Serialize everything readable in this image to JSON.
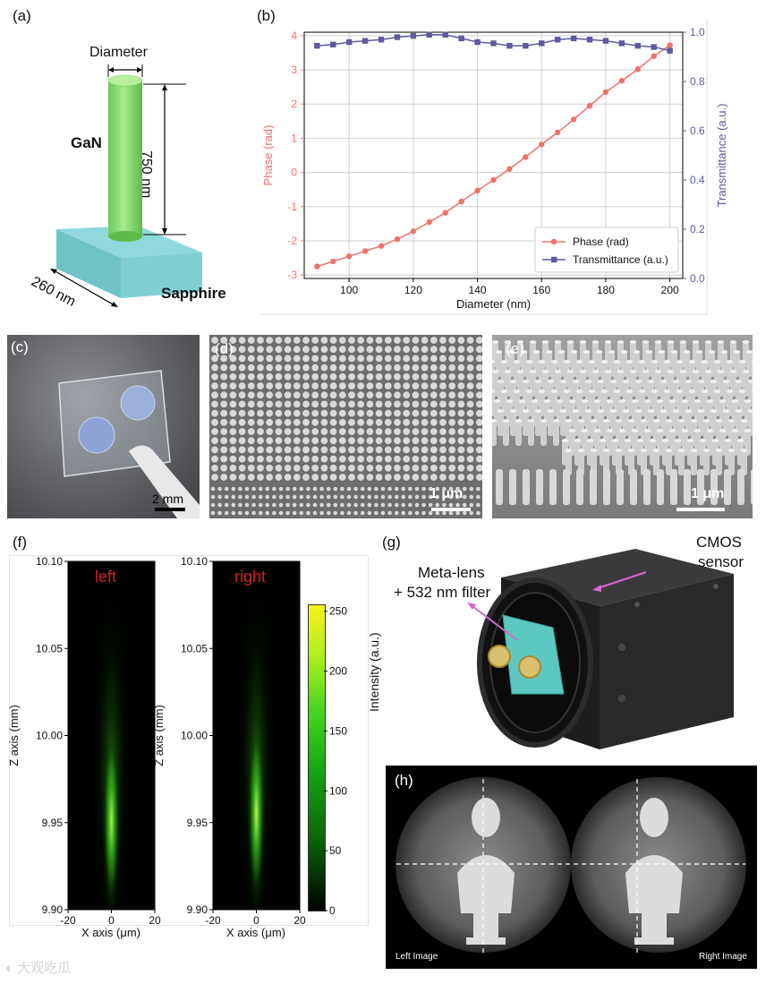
{
  "panels": {
    "a": "(a)",
    "b": "(b)",
    "c": "(c)",
    "d": "(d)",
    "e": "(e)",
    "f": "(f)",
    "g": "(g)",
    "h": "(h)"
  },
  "panel_a": {
    "diameter_label": "Diameter",
    "height_label": "750 nm",
    "material_top": "GaN",
    "substrate_label": "Sapphire",
    "period_label": "260 nm",
    "colors": {
      "pillar": "#7cd66a",
      "substrate": "#7fcfd3"
    }
  },
  "panel_c": {
    "scalebar": "2 mm"
  },
  "panel_d": {
    "scalebar": "1 μm"
  },
  "panel_e": {
    "scalebar": "1 μm"
  },
  "panel_f": {
    "left_title": "left",
    "right_title": "right",
    "ylabel": "Z axis (mm)",
    "xlabel": "X axis (μm)",
    "yticks": [
      "10.10",
      "10.05",
      "10.00",
      "9.95",
      "9.90"
    ],
    "xticks": [
      "-20",
      "0",
      "20"
    ],
    "colorbar_label": "Intensity (a.u.)",
    "colorbar_ticks": [
      "250",
      "200",
      "150",
      "100",
      "50",
      "0"
    ],
    "title_color": "#d42020"
  },
  "panel_g": {
    "lens_label_line1": "Meta-lens",
    "lens_label_line2": "+ 532 nm filter",
    "sensor_label_line1": "CMOS",
    "sensor_label_line2": "sensor",
    "arrow_color": "#d866d0"
  },
  "panel_h": {
    "left_caption": "Left Image",
    "right_caption": "Right Image"
  },
  "watermark": "大观吃瓜",
  "chart_data": {
    "type": "line",
    "xlabel": "Diameter (nm)",
    "ylabel": "Phase (rad)",
    "y2label": "Transmittance (a.u.)",
    "xlim": [
      86,
      204
    ],
    "ylim": [
      -3.1,
      4.1
    ],
    "y2lim": [
      0,
      1.0
    ],
    "xticks": [
      100,
      120,
      140,
      160,
      180,
      200
    ],
    "yticks": [
      -3,
      -2,
      -1,
      0,
      1,
      2,
      3,
      4
    ],
    "y2ticks": [
      0.0,
      0.2,
      0.4,
      0.6,
      0.8,
      1.0
    ],
    "grid": true,
    "legend_position": "lower-right",
    "x": [
      90,
      95,
      100,
      105,
      110,
      115,
      120,
      125,
      130,
      135,
      140,
      145,
      150,
      155,
      160,
      165,
      170,
      175,
      180,
      185,
      190,
      195,
      200
    ],
    "series": [
      {
        "name": "Phase (rad)",
        "axis": "left",
        "color": "#f0706a",
        "marker": "circle",
        "values": [
          -2.75,
          -2.6,
          -2.45,
          -2.3,
          -2.15,
          -1.95,
          -1.72,
          -1.45,
          -1.18,
          -0.85,
          -0.53,
          -0.22,
          0.1,
          0.45,
          0.82,
          1.17,
          1.55,
          1.95,
          2.35,
          2.68,
          3.02,
          3.4,
          3.72
        ]
      },
      {
        "name": "Transmittance (a.u.)",
        "axis": "right",
        "color": "#5d5a9e",
        "marker": "square",
        "values": [
          0.945,
          0.95,
          0.96,
          0.965,
          0.97,
          0.98,
          0.985,
          0.99,
          0.99,
          0.975,
          0.96,
          0.955,
          0.945,
          0.945,
          0.955,
          0.97,
          0.975,
          0.97,
          0.965,
          0.955,
          0.945,
          0.94,
          0.925
        ]
      }
    ]
  }
}
